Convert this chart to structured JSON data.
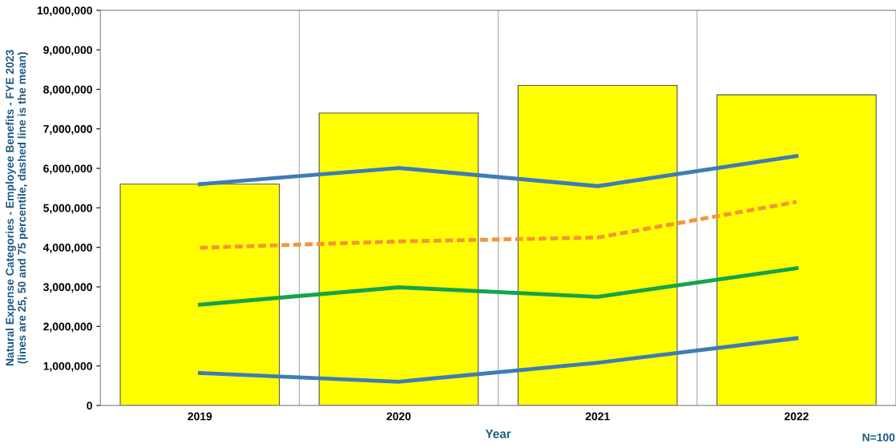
{
  "chart_data": {
    "type": "bar",
    "xlabel": "Year",
    "ylabel": "Natural Expense Categories - Employee Benefits - FYE 2023\n(lines are 25, 50 and 75 percentile, dashed line is the mean)",
    "annotations": [
      "N=100"
    ],
    "categories": [
      "2019",
      "2020",
      "2021",
      "2022"
    ],
    "series": [
      {
        "color": "#ffff00",
        "values": [
          5600000,
          7400000,
          8100000,
          7860000
        ]
      },
      {
        "type": "line",
        "color": "#3f7cb4",
        "line_style": "solid",
        "values": [
          5600000,
          6010000,
          5550000,
          6310000
        ]
      },
      {
        "type": "line",
        "color": "#f4953a",
        "line_style": "dashed",
        "values": [
          3990000,
          4150000,
          4250000,
          5150000
        ]
      },
      {
        "type": "line",
        "color": "#16a34a",
        "line_style": "solid",
        "values": [
          2550000,
          2990000,
          2750000,
          3470000
        ]
      },
      {
        "type": "line",
        "color": "#3f7cb4",
        "line_style": "solid",
        "values": [
          820000,
          600000,
          1080000,
          1700000
        ]
      }
    ],
    "ylim": [
      0,
      10000000
    ],
    "yticks": [
      {
        "value": 0,
        "label": "0"
      },
      {
        "value": 1000000,
        "label": "1,000,000"
      },
      {
        "value": 2000000,
        "label": "2,000,000"
      },
      {
        "value": 3000000,
        "label": "3,000,000"
      },
      {
        "value": 4000000,
        "label": "4,000,000"
      },
      {
        "value": 5000000,
        "label": "5,000,000"
      },
      {
        "value": 6000000,
        "label": "6,000,000"
      },
      {
        "value": 7000000,
        "label": "7,000,000"
      },
      {
        "value": 8000000,
        "label": "8,000,000"
      },
      {
        "value": 9000000,
        "label": "9,000,000"
      },
      {
        "value": 10000000,
        "label": "10,000,000"
      }
    ],
    "grid": "x",
    "legend": false
  }
}
